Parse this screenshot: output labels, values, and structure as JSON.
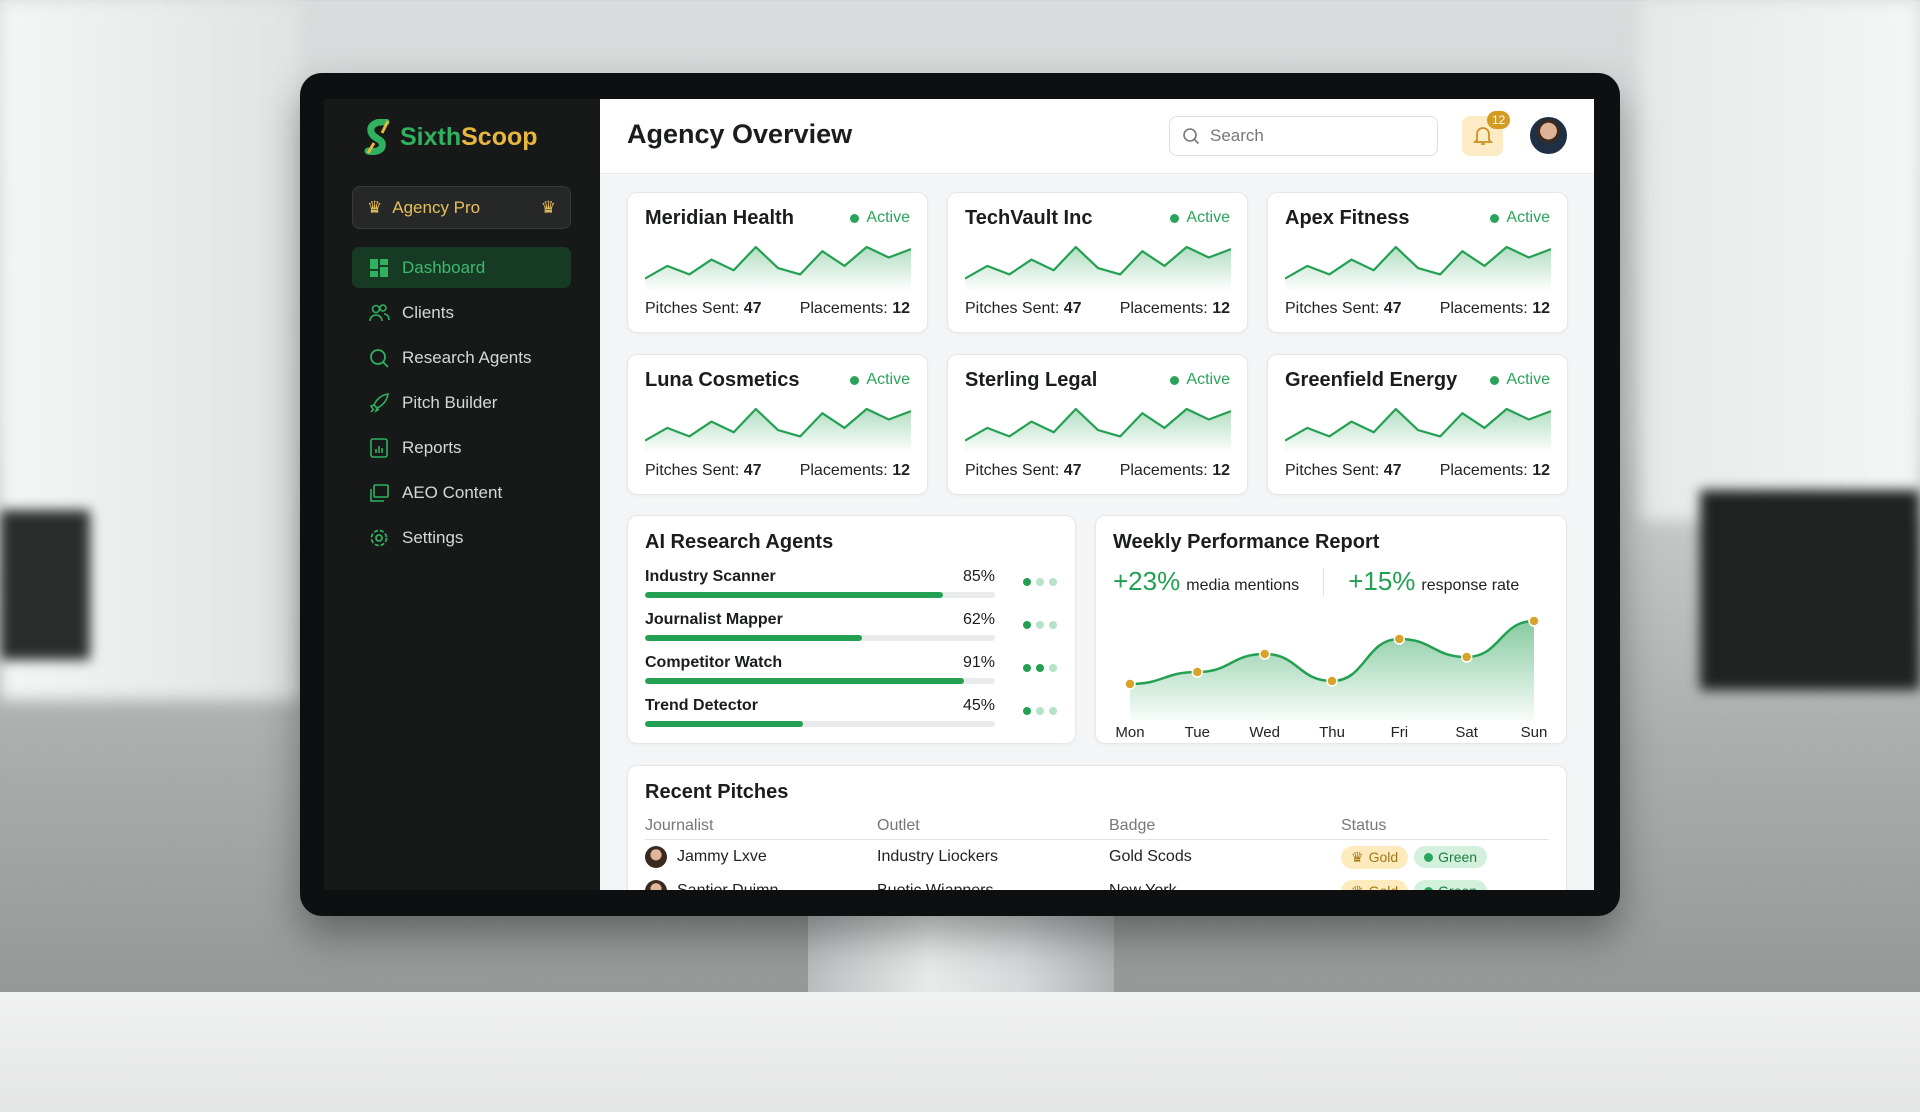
{
  "brand": {
    "name_part1": "Sixth",
    "name_part2": "Scoop",
    "colors": {
      "green": "#2fb160",
      "gold": "#e7b640"
    }
  },
  "plan": {
    "label": "Agency Pro",
    "icon": "crown-icon"
  },
  "sidebar": {
    "items": [
      {
        "label": "Dashboard",
        "icon": "dashboard-grid-icon",
        "active": true
      },
      {
        "label": "Clients",
        "icon": "users-icon"
      },
      {
        "label": "Research Agents",
        "icon": "search-icon"
      },
      {
        "label": "Pitch Builder",
        "icon": "rocket-icon"
      },
      {
        "label": "Reports",
        "icon": "report-chart-icon"
      },
      {
        "label": "AEO Content",
        "icon": "copy-icon"
      },
      {
        "label": "Settings",
        "icon": "gear-icon"
      }
    ]
  },
  "header": {
    "title": "Agency Overview",
    "search_placeholder": "Search",
    "notifications": "12"
  },
  "clients": [
    {
      "name": "Meridian Health",
      "status": "Active",
      "pitches_label": "Pitches Sent:",
      "pitches": "47",
      "placements_label": "Placements:",
      "placements": "12"
    },
    {
      "name": "TechVault Inc",
      "status": "Active",
      "pitches_label": "Pitches Sent:",
      "pitches": "47",
      "placements_label": "Placements:",
      "placements": "12"
    },
    {
      "name": "Apex Fitness",
      "status": "Active",
      "pitches_label": "Pitches Sent:",
      "pitches": "47",
      "placements_label": "Placements:",
      "placements": "12"
    },
    {
      "name": "Luna Cosmetics",
      "status": "Active",
      "pitches_label": "Pitches Sent:",
      "pitches": "47",
      "placements_label": "Placements:",
      "placements": "12"
    },
    {
      "name": "Sterling Legal",
      "status": "Active",
      "pitches_label": "Pitches Sent:",
      "pitches": "47",
      "placements_label": "Placements:",
      "placements": "12"
    },
    {
      "name": "Greenfield Energy",
      "status": "Active",
      "pitches_label": "Pitches Sent:",
      "pitches": "47",
      "placements_label": "Placements:",
      "placements": "12"
    }
  ],
  "sparkline": [
    8,
    20,
    12,
    26,
    16,
    38,
    18,
    12,
    34,
    20,
    38,
    28,
    36
  ],
  "agents": {
    "title": "AI Research Agents",
    "items": [
      {
        "name": "Industry Scanner",
        "value": "85%",
        "progress": 85,
        "dots": 1
      },
      {
        "name": "Journalist Mapper",
        "value": "62%",
        "progress": 62,
        "dots": 1
      },
      {
        "name": "Competitor Watch",
        "value": "91%",
        "progress": 91,
        "dots": 2
      },
      {
        "name": "Trend Detector",
        "value": "45%",
        "progress": 45,
        "dots": 1
      }
    ]
  },
  "weekly": {
    "title": "Weekly Performance Report",
    "stat1_value": "+23%",
    "stat1_label": "media mentions",
    "stat2_value": "+15%",
    "stat2_label": "response rate"
  },
  "chart_data": {
    "type": "area",
    "categories": [
      "Mon",
      "Tue",
      "Wed",
      "Thu",
      "Fri",
      "Sat",
      "Sun"
    ],
    "values": [
      20,
      28,
      40,
      22,
      50,
      38,
      62
    ],
    "ylim": [
      0,
      70
    ],
    "grid": false,
    "colors": {
      "line": "#23a052",
      "points": "#d9a22a"
    }
  },
  "recent": {
    "title": "Recent Pitches",
    "columns": [
      "Journalist",
      "Outlet",
      "Badge",
      "Status"
    ],
    "rows": [
      {
        "journalist": "Jammy Lxve",
        "outlet": "Industry Liockers",
        "badge": "Gold Scods",
        "status1": "Gold",
        "status2": "Green"
      },
      {
        "journalist": "Santier Duimn",
        "outlet": "Buotic Wiapners",
        "badge": "New York",
        "status1": "Gold",
        "status2": "Green"
      }
    ]
  }
}
